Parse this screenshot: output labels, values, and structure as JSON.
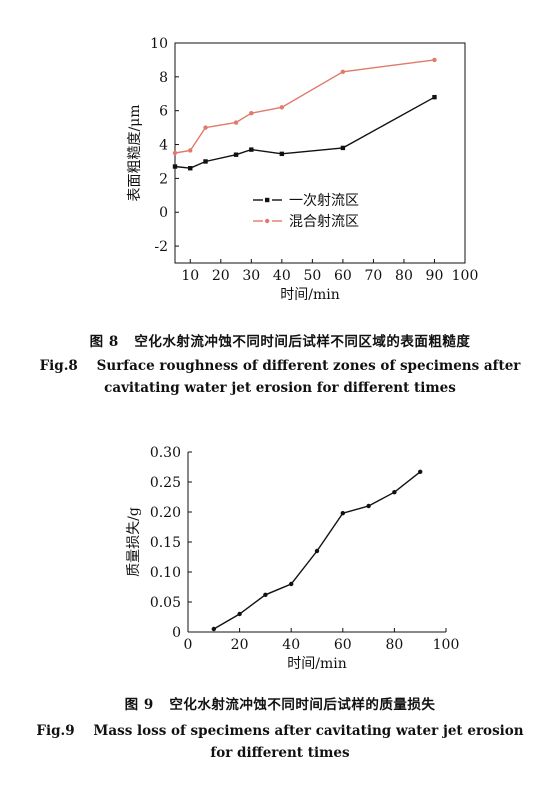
{
  "chart_data": [
    {
      "type": "line",
      "figure_label": "图 8",
      "caption_zh": "空化水射流冲蚀不同时间后试样不同区域的表面粗糙度",
      "caption_en_l1": "Fig.8    Surface roughness of different zones of specimens after",
      "caption_en_l2": "cavitating water jet erosion for different times",
      "xlabel": "时间/min",
      "ylabel": "表面粗糙度/μm",
      "xlim": [
        5,
        100
      ],
      "ylim": [
        -3,
        10
      ],
      "xticks": [
        10,
        20,
        30,
        40,
        50,
        60,
        70,
        80,
        90,
        100
      ],
      "yticks": [
        -2,
        0,
        2,
        4,
        6,
        8,
        10
      ],
      "legend_position": "center",
      "series": [
        {
          "name": "一次射流区",
          "color": "#111111",
          "marker": "square",
          "x": [
            5,
            10,
            15,
            25,
            30,
            40,
            60,
            90
          ],
          "y": [
            2.7,
            2.6,
            3.0,
            3.4,
            3.7,
            3.45,
            3.8,
            6.8
          ]
        },
        {
          "name": "混合射流区",
          "color": "#e07a6a",
          "marker": "dot",
          "x": [
            5,
            10,
            15,
            25,
            30,
            40,
            60,
            90
          ],
          "y": [
            3.5,
            3.65,
            5.0,
            5.3,
            5.85,
            6.2,
            8.3,
            9.0
          ]
        }
      ]
    },
    {
      "type": "line",
      "figure_label": "图 9",
      "caption_zh": "空化水射流冲蚀不同时间后试样的质量损失",
      "caption_en_l1": "Fig.9    Mass loss of specimens after cavitating water jet erosion",
      "caption_en_l2": "for different times",
      "xlabel": "时间/min",
      "ylabel": "质量损失/g",
      "xlim": [
        0,
        100
      ],
      "ylim": [
        0,
        0.3
      ],
      "xticks": [
        0,
        20,
        40,
        60,
        80,
        100
      ],
      "yticks": [
        0,
        0.05,
        0.1,
        0.15,
        0.2,
        0.25,
        0.3
      ],
      "ytick_labels": [
        "0",
        "0.05",
        "0.10",
        "0.15",
        "0.20",
        "0.25",
        "0.30"
      ],
      "series": [
        {
          "color": "#111111",
          "marker": "dot",
          "x": [
            10,
            20,
            30,
            40,
            50,
            60,
            70,
            80,
            90
          ],
          "y": [
            0.005,
            0.03,
            0.062,
            0.08,
            0.135,
            0.198,
            0.21,
            0.233,
            0.267
          ]
        }
      ]
    }
  ]
}
